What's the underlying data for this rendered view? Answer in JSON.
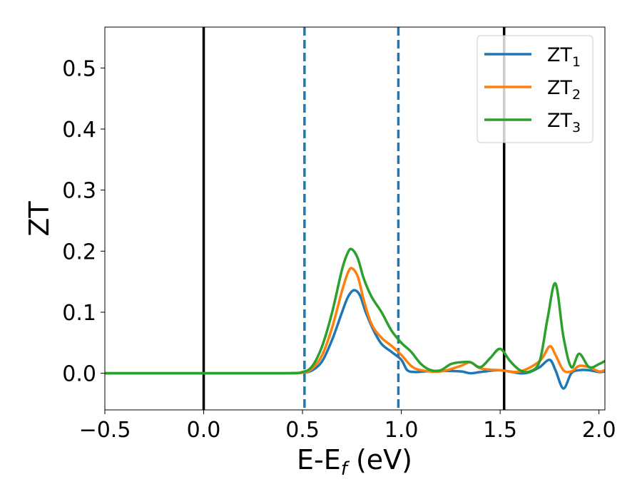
{
  "chart_data": {
    "type": "line",
    "title": "",
    "xlabel": "E-E",
    "xlabel_sub": "f",
    "xlabel_suffix": " (eV)",
    "ylabel": "ZT",
    "xlim": [
      -0.5,
      2.03
    ],
    "ylim": [
      -0.06,
      0.567
    ],
    "grid": false,
    "legend_position": "top-right",
    "xticks": [
      -0.5,
      0.0,
      0.5,
      1.0,
      1.5,
      2.0
    ],
    "xtick_labels": [
      "−0.5",
      "0.0",
      "0.5",
      "1.0",
      "1.5",
      "2.0"
    ],
    "yticks": [
      0.0,
      0.1,
      0.2,
      0.3,
      0.4,
      0.5
    ],
    "ytick_labels": [
      "0.0",
      "0.1",
      "0.2",
      "0.3",
      "0.4",
      "0.5"
    ],
    "vlines": [
      {
        "x": 0.0,
        "style": "solid",
        "color": "#000000"
      },
      {
        "x": 0.51,
        "style": "dashed",
        "color": "#1f77b4"
      },
      {
        "x": 0.985,
        "style": "dashed",
        "color": "#1f77b4"
      },
      {
        "x": 1.52,
        "style": "solid",
        "color": "#000000"
      }
    ],
    "series": [
      {
        "name": "ZT",
        "name_sub": "1",
        "color": "#1f77b4",
        "x": [
          -0.5,
          0.0,
          0.4,
          0.5,
          0.55,
          0.6,
          0.65,
          0.7,
          0.73,
          0.76,
          0.79,
          0.82,
          0.86,
          0.9,
          0.95,
          1.0,
          1.03,
          1.07,
          1.12,
          1.2,
          1.3,
          1.35,
          1.4,
          1.5,
          1.6,
          1.65,
          1.7,
          1.75,
          1.78,
          1.82,
          1.86,
          1.9,
          1.95,
          2.0,
          2.03
        ],
        "y": [
          0.0,
          0.0,
          0.0,
          0.001,
          0.005,
          0.02,
          0.055,
          0.1,
          0.125,
          0.136,
          0.128,
          0.1,
          0.07,
          0.048,
          0.035,
          0.022,
          0.005,
          0.002,
          0.003,
          0.004,
          0.003,
          0.0,
          0.002,
          0.005,
          0.0,
          0.002,
          0.01,
          0.022,
          0.005,
          -0.025,
          0.0,
          0.005,
          0.005,
          0.002,
          0.003
        ]
      },
      {
        "name": "ZT",
        "name_sub": "2",
        "color": "#ff7f0e",
        "x": [
          -0.5,
          0.0,
          0.4,
          0.5,
          0.55,
          0.6,
          0.65,
          0.7,
          0.73,
          0.75,
          0.78,
          0.81,
          0.85,
          0.9,
          0.95,
          1.0,
          1.05,
          1.1,
          1.2,
          1.3,
          1.35,
          1.4,
          1.5,
          1.6,
          1.7,
          1.75,
          1.78,
          1.82,
          1.86,
          1.9,
          1.95,
          2.0,
          2.03
        ],
        "y": [
          0.0,
          0.0,
          0.0,
          0.001,
          0.008,
          0.03,
          0.075,
          0.135,
          0.165,
          0.172,
          0.158,
          0.12,
          0.08,
          0.058,
          0.045,
          0.03,
          0.012,
          0.005,
          0.003,
          0.012,
          0.018,
          0.008,
          0.005,
          0.003,
          0.02,
          0.044,
          0.03,
          0.005,
          0.003,
          0.012,
          0.01,
          0.003,
          0.005
        ]
      },
      {
        "name": "ZT",
        "name_sub": "3",
        "color": "#2ca02c",
        "x": [
          -0.5,
          0.0,
          0.4,
          0.5,
          0.55,
          0.6,
          0.65,
          0.7,
          0.73,
          0.75,
          0.78,
          0.81,
          0.85,
          0.9,
          0.95,
          1.0,
          1.05,
          1.1,
          1.15,
          1.2,
          1.25,
          1.3,
          1.35,
          1.4,
          1.45,
          1.5,
          1.55,
          1.6,
          1.65,
          1.7,
          1.74,
          1.78,
          1.82,
          1.86,
          1.9,
          1.95,
          2.0,
          2.03
        ],
        "y": [
          0.0,
          0.0,
          0.0,
          0.002,
          0.012,
          0.045,
          0.1,
          0.17,
          0.198,
          0.203,
          0.188,
          0.155,
          0.125,
          0.1,
          0.07,
          0.05,
          0.035,
          0.015,
          0.005,
          0.005,
          0.015,
          0.018,
          0.018,
          0.01,
          0.025,
          0.04,
          0.02,
          0.005,
          0.003,
          0.02,
          0.09,
          0.147,
          0.06,
          0.01,
          0.032,
          0.01,
          0.015,
          0.02
        ]
      }
    ]
  }
}
